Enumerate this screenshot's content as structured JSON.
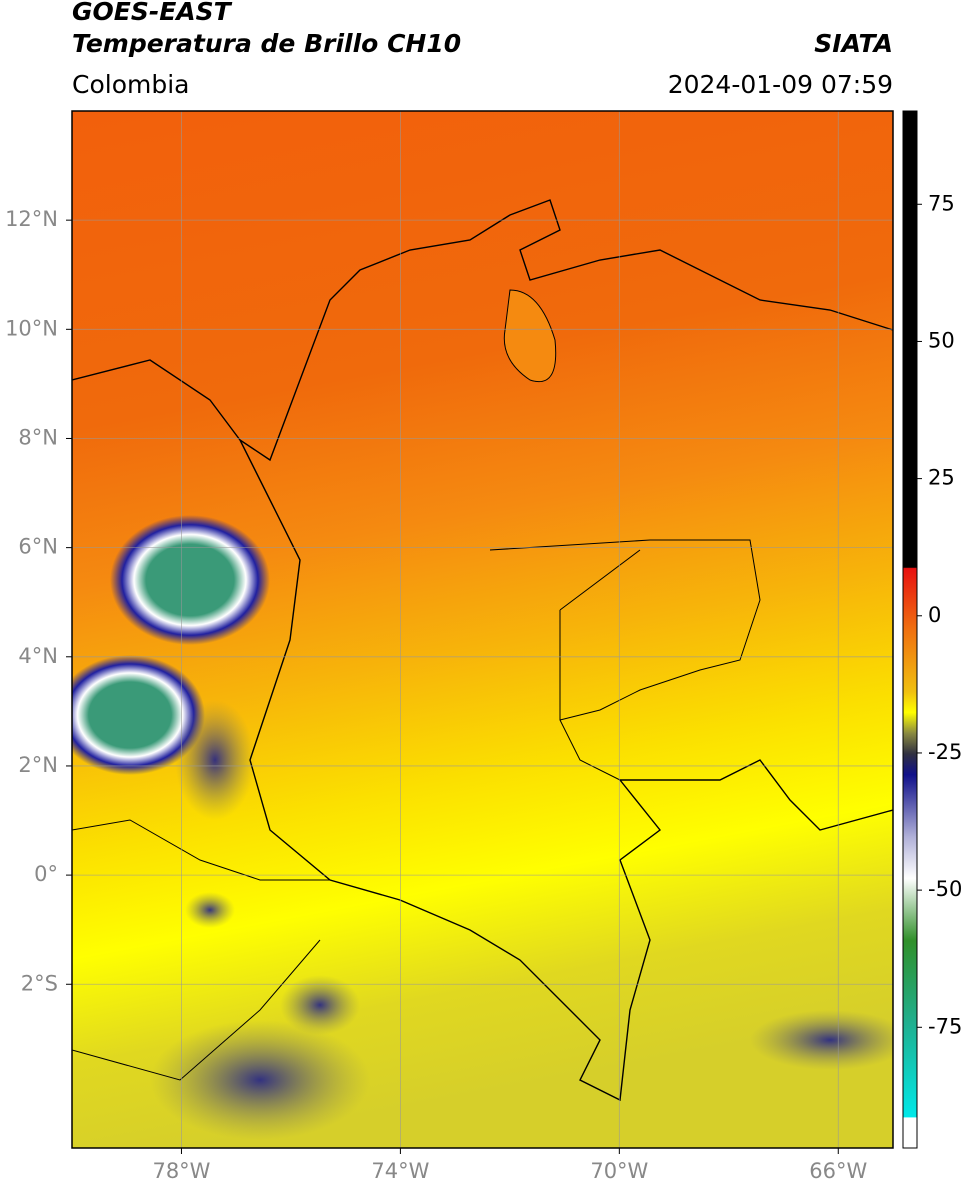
{
  "header": {
    "title": "GOES-EAST",
    "subtitle": "Temperatura de Brillo CH10",
    "source": "SIATA",
    "region": "Colombia",
    "datetime": "2024-01-09 07:59"
  },
  "map": {
    "xlim": [
      -80,
      -65
    ],
    "ylim": [
      -5,
      14
    ],
    "xticks": [
      {
        "value": -78,
        "label": "78°W"
      },
      {
        "value": -74,
        "label": "74°W"
      },
      {
        "value": -70,
        "label": "70°W"
      },
      {
        "value": -66,
        "label": "66°W"
      }
    ],
    "yticks": [
      {
        "value": 12,
        "label": "12°N"
      },
      {
        "value": 10,
        "label": "10°N"
      },
      {
        "value": 8,
        "label": "8°N"
      },
      {
        "value": 6,
        "label": "6°N"
      },
      {
        "value": 4,
        "label": "4°N"
      },
      {
        "value": 2,
        "label": "2°N"
      },
      {
        "value": 0,
        "label": "0°"
      },
      {
        "value": -2,
        "label": "2°S"
      }
    ],
    "grid": true
  },
  "colorbar": {
    "lim": [
      -97,
      92
    ],
    "ticks": [
      75,
      50,
      25,
      0,
      -25,
      -50,
      -75
    ]
  }
}
